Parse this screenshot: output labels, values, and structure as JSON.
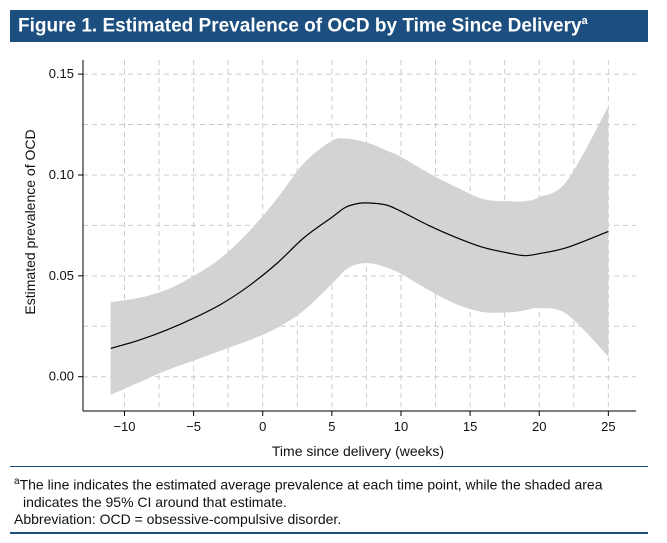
{
  "figure": {
    "title": "Figure 1. Estimated Prevalence of OCD by Time Since Delivery",
    "title_sup": "a"
  },
  "chart_data": {
    "type": "line",
    "xlabel": "Time since delivery (weeks)",
    "ylabel": "Estimated prevalence of OCD",
    "xlim": [
      -13,
      27
    ],
    "ylim": [
      -0.017,
      0.157
    ],
    "x_ticks": [
      -10,
      -5,
      0,
      5,
      10,
      15,
      20,
      25
    ],
    "x_tick_labels": [
      "−10",
      "−5",
      "0",
      "5",
      "10",
      "15",
      "20",
      "25"
    ],
    "y_ticks": [
      0.0,
      0.05,
      0.1,
      0.15
    ],
    "y_tick_labels": [
      "0.00",
      "0.05",
      "0.10",
      "0.15"
    ],
    "grid": true,
    "series": [
      {
        "x": [
          -11,
          -9,
          -7,
          -5,
          -3,
          -1,
          1,
          3,
          5,
          6,
          7,
          8,
          9,
          10,
          12,
          14,
          16,
          18,
          19,
          20,
          22,
          25
        ],
        "estimate": [
          0.014,
          0.018,
          0.023,
          0.029,
          0.036,
          0.045,
          0.056,
          0.069,
          0.079,
          0.084,
          0.086,
          0.086,
          0.085,
          0.082,
          0.075,
          0.069,
          0.064,
          0.061,
          0.06,
          0.061,
          0.064,
          0.072
        ],
        "ci_lower": [
          -0.009,
          -0.003,
          0.003,
          0.008,
          0.013,
          0.018,
          0.024,
          0.033,
          0.046,
          0.053,
          0.056,
          0.056,
          0.054,
          0.051,
          0.043,
          0.036,
          0.032,
          0.032,
          0.033,
          0.034,
          0.031,
          0.01
        ],
        "ci_upper": [
          0.037,
          0.039,
          0.043,
          0.05,
          0.059,
          0.072,
          0.088,
          0.106,
          0.117,
          0.118,
          0.117,
          0.115,
          0.112,
          0.109,
          0.101,
          0.094,
          0.088,
          0.087,
          0.087,
          0.089,
          0.097,
          0.134
        ]
      }
    ],
    "colors": {
      "line": "#000000",
      "band": "#d3d3d3",
      "grid": "#cccccc"
    }
  },
  "footnote": {
    "sup": "a",
    "line1": "The line indicates the estimated average prevalence at each time point, while the shaded area",
    "line2": "indicates the 95% CI around that estimate.",
    "line3": "Abbreviation: OCD = obsessive-compulsive disorder."
  },
  "colors": {
    "title_bar": "#1c4f80"
  }
}
